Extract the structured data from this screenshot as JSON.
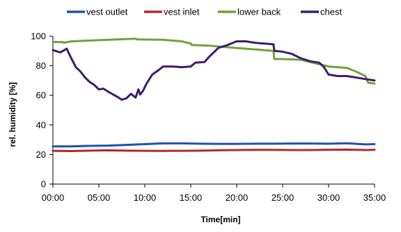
{
  "chart_data": {
    "type": "line",
    "xlabel": "Time[min]",
    "ylabel": "rel. humidity [%]",
    "xlim": [
      0,
      35
    ],
    "ylim": [
      0,
      100
    ],
    "x_ticks": [
      0,
      5,
      10,
      15,
      20,
      25,
      30,
      35
    ],
    "x_tick_labels": [
      "00:00",
      "05:00",
      "10:00",
      "15:00",
      "20:00",
      "25:00",
      "30:00",
      "35:00"
    ],
    "y_ticks": [
      0,
      20,
      40,
      60,
      80,
      100
    ],
    "y_tick_labels": [
      "0",
      "20",
      "40",
      "60",
      "80",
      "100"
    ],
    "grid": false,
    "legend_position": "top",
    "series": [
      {
        "name": "vest outlet",
        "color": "#1f4fb4",
        "x": [
          0,
          2,
          4,
          6,
          8,
          10,
          12,
          14,
          16,
          18,
          20,
          22,
          24,
          26,
          28,
          30,
          32,
          34,
          35
        ],
        "y": [
          25.5,
          25.5,
          25.8,
          26.0,
          26.5,
          27.0,
          27.5,
          27.5,
          27.3,
          27.2,
          27.2,
          27.3,
          27.3,
          27.4,
          27.4,
          27.3,
          27.6,
          26.8,
          27.0
        ]
      },
      {
        "name": "vest inlet",
        "color": "#b22a2a",
        "x": [
          0,
          2,
          4,
          6,
          8,
          10,
          12,
          14,
          16,
          18,
          20,
          22,
          24,
          26,
          28,
          30,
          32,
          34,
          35
        ],
        "y": [
          22.5,
          22.3,
          22.6,
          22.8,
          22.6,
          22.5,
          22.4,
          22.5,
          22.6,
          22.8,
          23.0,
          23.1,
          23.1,
          23.0,
          23.0,
          23.2,
          23.3,
          23.0,
          23.2
        ]
      },
      {
        "name": "lower back",
        "color": "#6fa23a",
        "x": [
          0,
          1,
          1.2,
          2,
          4,
          6,
          8,
          9,
          9.2,
          12,
          14,
          15,
          15.1,
          17,
          19,
          21,
          23,
          24,
          24.1,
          25,
          27,
          29,
          30,
          32,
          33,
          34,
          34.3,
          35
        ],
        "y": [
          96.0,
          96.0,
          95.5,
          96.5,
          97.0,
          97.5,
          98.0,
          98.2,
          97.8,
          97.5,
          96.5,
          95.0,
          94.0,
          93.5,
          92.5,
          91.5,
          90.5,
          90.0,
          84.5,
          84.5,
          84.0,
          81.0,
          79.5,
          78.5,
          76.0,
          73.0,
          68.5,
          68.0
        ]
      },
      {
        "name": "chest",
        "color": "#3c1c6e",
        "x": [
          0,
          0.8,
          1.5,
          2,
          2.5,
          3,
          3.5,
          4,
          4.5,
          5,
          5.5,
          6,
          7,
          7.5,
          8,
          8.5,
          9,
          9.3,
          9.5,
          9.8,
          10.2,
          10.8,
          11.5,
          12,
          13,
          14,
          15,
          15.5,
          16.5,
          17,
          18,
          19,
          20,
          21,
          22,
          23,
          24,
          24.1,
          25,
          26,
          27,
          28,
          29,
          29.5,
          30,
          31,
          32,
          33,
          34,
          35
        ],
        "y": [
          90.5,
          89.0,
          91.5,
          85.0,
          79.0,
          76.0,
          72.0,
          69.0,
          67.0,
          64.0,
          64.5,
          62.5,
          59.0,
          57.0,
          58.0,
          61.0,
          58.5,
          64.0,
          60.5,
          63.0,
          68.0,
          74.0,
          77.0,
          79.5,
          79.5,
          79.0,
          79.5,
          82.0,
          82.5,
          86.0,
          92.0,
          94.0,
          96.5,
          96.5,
          95.5,
          95.0,
          94.5,
          90.0,
          89.5,
          88.0,
          85.0,
          83.0,
          82.0,
          79.0,
          74.0,
          73.0,
          73.0,
          72.0,
          71.0,
          70.0
        ]
      }
    ]
  }
}
